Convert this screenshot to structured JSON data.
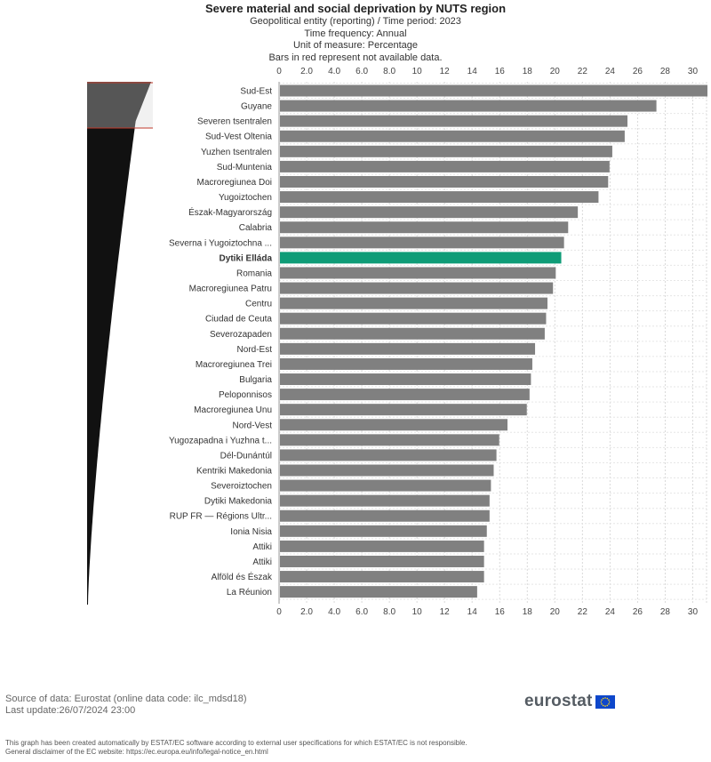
{
  "header": {
    "title": "Severe material and social deprivation by NUTS region",
    "subtitle_lines": [
      "Geopolitical entity (reporting) / Time period: 2023",
      "Time frequency: Annual",
      "Unit of measure: Percentage",
      "Bars in red represent not available data."
    ]
  },
  "chart_data": {
    "type": "bar",
    "orientation": "horizontal",
    "title": "Severe material and social deprivation by NUTS region",
    "xlim": [
      0,
      31
    ],
    "ticks": [
      0,
      2.0,
      4.0,
      6.0,
      8.0,
      10,
      12,
      14,
      16,
      18,
      20,
      22,
      24,
      26,
      28,
      30
    ],
    "tick_labels": [
      "0",
      "2.0",
      "4.0",
      "6.0",
      "8.0",
      "10",
      "12",
      "14",
      "16",
      "18",
      "20",
      "22",
      "24",
      "26",
      "28",
      "30"
    ],
    "grid": true,
    "bar_color": "#808080",
    "highlight_color": "#0e9c77",
    "highlight_category": "Dytiki Elláda",
    "categories": [
      "Sud-Est",
      "Guyane",
      "Severen tsentralen",
      "Sud-Vest Oltenia",
      "Yuzhen tsentralen",
      "Sud-Muntenia",
      "Macroregiunea Doi",
      "Yugoiztochen",
      "Észak-Magyarország",
      "Calabria",
      "Severna i Yugoiztochna ...",
      "Dytiki Elláda",
      "Romania",
      "Macroregiunea Patru",
      "Centru",
      "Ciudad de Ceuta",
      "Severozapaden",
      "Nord-Est",
      "Macroregiunea Trei",
      "Bulgaria",
      "Peloponnisos",
      "Macroregiunea Unu",
      "Nord-Vest",
      "Yugozapadna i Yuzhna t...",
      "Dél-Dunántúl",
      "Kentriki Makedonia",
      "Severoiztochen",
      "Dytiki Makedonia",
      "RUP FR — Régions Ultr...",
      "Ionia Nisia",
      "Attiki",
      "Attiki",
      "Alföld és Észak",
      "La Réunion"
    ],
    "values": [
      31.0,
      27.3,
      25.2,
      25.0,
      24.1,
      23.9,
      23.8,
      23.1,
      21.6,
      20.9,
      20.6,
      20.4,
      20.0,
      19.8,
      19.4,
      19.3,
      19.2,
      18.5,
      18.3,
      18.2,
      18.1,
      17.9,
      16.5,
      15.9,
      15.7,
      15.5,
      15.3,
      15.2,
      15.2,
      15.0,
      14.8,
      14.8,
      14.8,
      14.3
    ]
  },
  "footer": {
    "source": "Source of data: Eurostat (online data code: ilc_mdsd18)",
    "last_update": "Last update:26/07/2024 23:00",
    "disclaimer_1": "This graph has been created automatically by ESTAT/EC software according to external user specifications for which ESTAT/EC is not responsible.",
    "disclaimer_2": "General disclaimer of the EC website: https://ec.europa.eu/info/legal-notice_en.html",
    "logo_text": "eurostat"
  }
}
